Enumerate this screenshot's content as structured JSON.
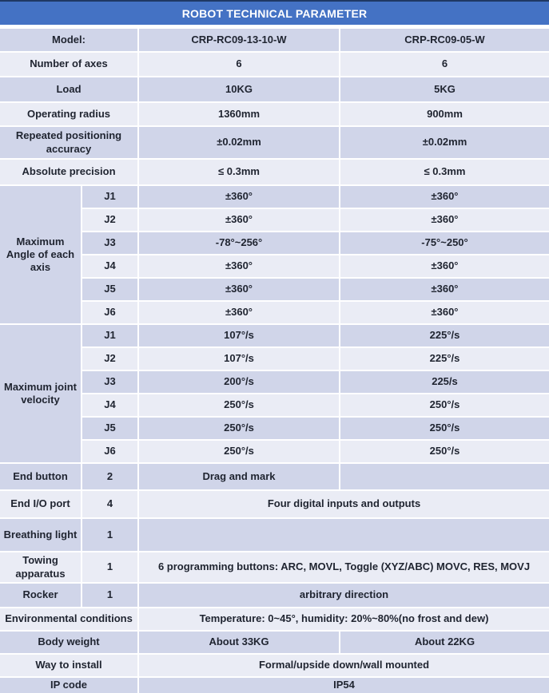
{
  "title": "ROBOT TECHNICAL PARAMETER",
  "colors": {
    "header_blue": "#4472C4",
    "header_border": "#1F3864",
    "row_dark": "#D0D5E9",
    "row_light": "#EAECF5",
    "text": "#1F2430"
  },
  "rows": {
    "model": {
      "label": "Model:",
      "v1": "CRP-RC09-13-10-W",
      "v2": "CRP-RC09-05-W"
    },
    "axes": {
      "label": "Number of axes",
      "v1": "6",
      "v2": "6"
    },
    "load": {
      "label": "Load",
      "v1": "10KG",
      "v2": "5KG"
    },
    "radius": {
      "label": "Operating radius",
      "v1": "1360mm",
      "v2": "900mm"
    },
    "repeat": {
      "label": "Repeated positioning accuracy",
      "v1": "±0.02mm",
      "v2": "±0.02mm"
    },
    "absolute": {
      "label": "Absolute precision",
      "v1": "≤ 0.3mm",
      "v2": "≤ 0.3mm"
    }
  },
  "angle": {
    "label": "Maximum Angle of each axis",
    "rows": [
      {
        "j": "J1",
        "v1": "±360°",
        "v2": "±360°"
      },
      {
        "j": "J2",
        "v1": "±360°",
        "v2": "±360°"
      },
      {
        "j": "J3",
        "v1": "-78°~256°",
        "v2": "-75°~250°"
      },
      {
        "j": "J4",
        "v1": "±360°",
        "v2": "±360°"
      },
      {
        "j": "J5",
        "v1": "±360°",
        "v2": "±360°"
      },
      {
        "j": "J6",
        "v1": "±360°",
        "v2": "±360°"
      }
    ]
  },
  "velocity": {
    "label": "Maximum joint velocity",
    "rows": [
      {
        "j": "J1",
        "v1": "107°/s",
        "v2": "225°/s"
      },
      {
        "j": "J2",
        "v1": "107°/s",
        "v2": "225°/s"
      },
      {
        "j": "J3",
        "v1": "200°/s",
        "v2": "225/s"
      },
      {
        "j": "J4",
        "v1": "250°/s",
        "v2": "250°/s"
      },
      {
        "j": "J5",
        "v1": "250°/s",
        "v2": "250°/s"
      },
      {
        "j": "J6",
        "v1": "250°/s",
        "v2": "250°/s"
      }
    ]
  },
  "bottom": {
    "end_button": {
      "label": "End button",
      "count": "2",
      "v1": "Drag and mark",
      "v2": ""
    },
    "end_io": {
      "label": "End I/O port",
      "count": "4",
      "value": "Four digital inputs and outputs"
    },
    "breathing": {
      "label": "Breathing light",
      "count": "1",
      "value": ""
    },
    "towing": {
      "label": "Towing apparatus",
      "count": "1",
      "value": "6 programming buttons: ARC, MOVL, Toggle (XYZ/ABC) MOVC, RES, MOVJ"
    },
    "rocker": {
      "label": "Rocker",
      "count": "1",
      "value": "arbitrary direction"
    },
    "environment": {
      "label": "Environmental conditions",
      "value": "Temperature: 0~45°, humidity: 20%~80%(no frost and dew)"
    },
    "body_weight": {
      "label": "Body weight",
      "v1": "About 33KG",
      "v2": "About 22KG"
    },
    "install": {
      "label": "Way to install",
      "value": "Formal/upside down/wall mounted"
    },
    "ip": {
      "label": "IP code",
      "value": "IP54"
    }
  }
}
